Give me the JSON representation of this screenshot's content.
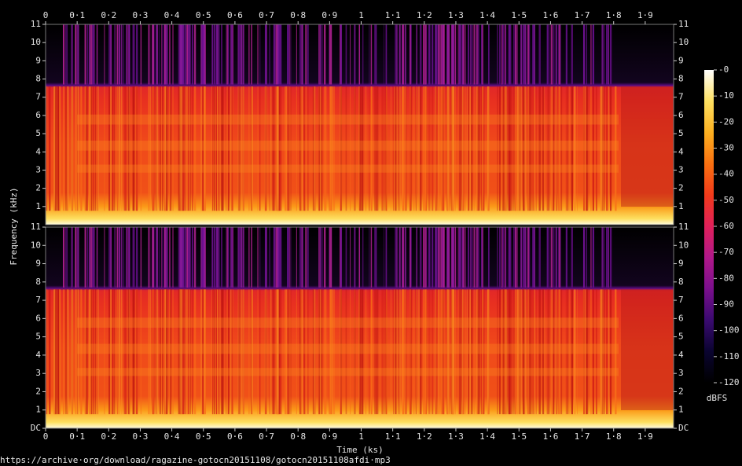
{
  "chart_data": {
    "type": "spectrogram",
    "xlabel": "Time (ks)",
    "ylabel": "Frequency (kHz)",
    "xlim": [
      0,
      1.99
    ],
    "xticks": [
      0,
      {
        "value": 0.1,
        "label": "0·1"
      },
      {
        "value": 0.2,
        "label": "0·2"
      },
      {
        "value": 0.3,
        "label": "0·3"
      },
      {
        "value": 0.4,
        "label": "0·4"
      },
      {
        "value": 0.5,
        "label": "0·5"
      },
      {
        "value": 0.6,
        "label": "0·6"
      },
      {
        "value": 0.7,
        "label": "0·7"
      },
      {
        "value": 0.8,
        "label": "0·8"
      },
      {
        "value": 0.9,
        "label": "0·9"
      },
      1,
      {
        "value": 1.1,
        "label": "1·1"
      },
      {
        "value": 1.2,
        "label": "1·2"
      },
      {
        "value": 1.3,
        "label": "1·3"
      },
      {
        "value": 1.4,
        "label": "1·4"
      },
      {
        "value": 1.5,
        "label": "1·5"
      },
      {
        "value": 1.6,
        "label": "1·6"
      },
      {
        "value": 1.7,
        "label": "1·7"
      },
      {
        "value": 1.8,
        "label": "1·8"
      },
      {
        "value": 1.9,
        "label": "1·9"
      }
    ],
    "channels": [
      {
        "ylim": [
          0,
          11
        ],
        "yticks": [
          1,
          2,
          3,
          4,
          5,
          6,
          7,
          8,
          9,
          10,
          11
        ]
      },
      {
        "ylim": [
          0,
          11
        ],
        "yticks": [
          {
            "value": 0,
            "label": "DC"
          },
          1,
          2,
          3,
          4,
          5,
          6,
          7,
          8,
          9,
          10,
          11
        ]
      }
    ],
    "colorbar": {
      "label": "dBFS",
      "lim": [
        -120,
        0
      ],
      "ticks": [
        {
          "value": 0,
          "label": "-0"
        },
        -10,
        -20,
        -30,
        -40,
        -50,
        -60,
        -70,
        -80,
        -90,
        -100,
        -110,
        -120
      ],
      "colors": [
        "#000000",
        "#0a0430",
        "#3a0a70",
        "#7a0f8c",
        "#b0188a",
        "#e0205a",
        "#f23a1a",
        "#fa7010",
        "#fdb020",
        "#fee060",
        "#ffffff"
      ]
    }
  },
  "source_url": "https://archive·org/download/ragazine-gotocn20151108/gotocn20151108afdi·mp3"
}
